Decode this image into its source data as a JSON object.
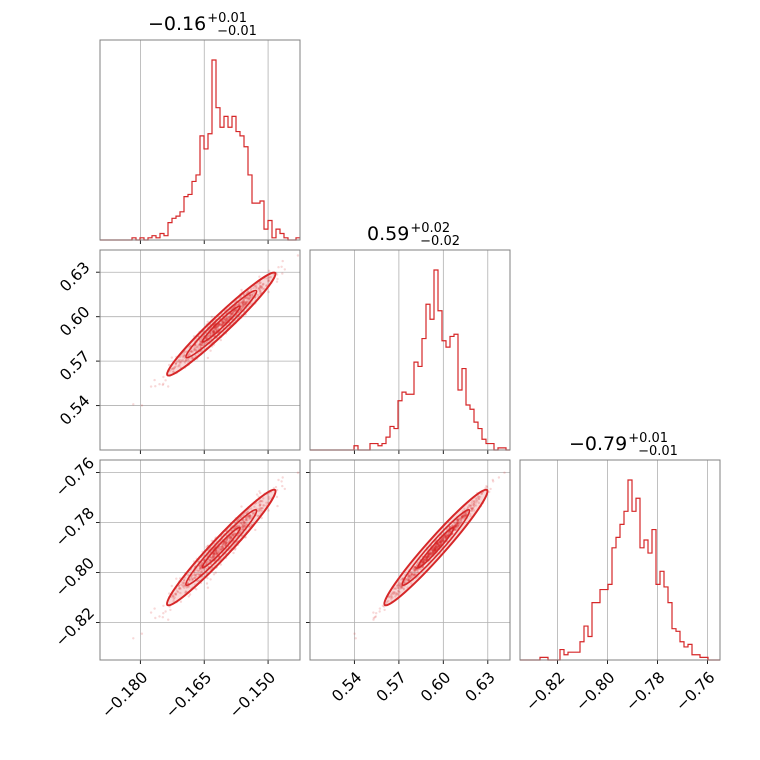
{
  "chart_data": {
    "type": "corner",
    "color": "#d62728",
    "grid": true,
    "parameters": [
      {
        "median": "−0.16",
        "plus": "+0.01",
        "minus": "−0.01",
        "range": [
          -0.1895,
          -0.1425
        ],
        "median_value": -0.161,
        "sigma": 0.0055,
        "ticks": [
          -0.18,
          -0.165,
          -0.15
        ],
        "tick_labels": [
          "−0.180",
          "−0.165",
          "−0.150"
        ]
      },
      {
        "median": "0.59",
        "plus": "+0.02",
        "minus": "−0.02",
        "range": [
          0.51,
          0.645
        ],
        "median_value": 0.595,
        "sigma": 0.015,
        "ticks": [
          0.54,
          0.57,
          0.6,
          0.63
        ],
        "tick_labels": [
          "0.54",
          "0.57",
          "0.60",
          "0.63"
        ]
      },
      {
        "median": "−0.79",
        "plus": "+0.01",
        "minus": "−0.01",
        "range": [
          -0.835,
          -0.755
        ],
        "median_value": -0.79,
        "sigma": 0.01,
        "ticks": [
          -0.82,
          -0.8,
          -0.78,
          -0.76
        ],
        "tick_labels": [
          "−0.82",
          "−0.80",
          "−0.78",
          "−0.76"
        ]
      }
    ]
  }
}
